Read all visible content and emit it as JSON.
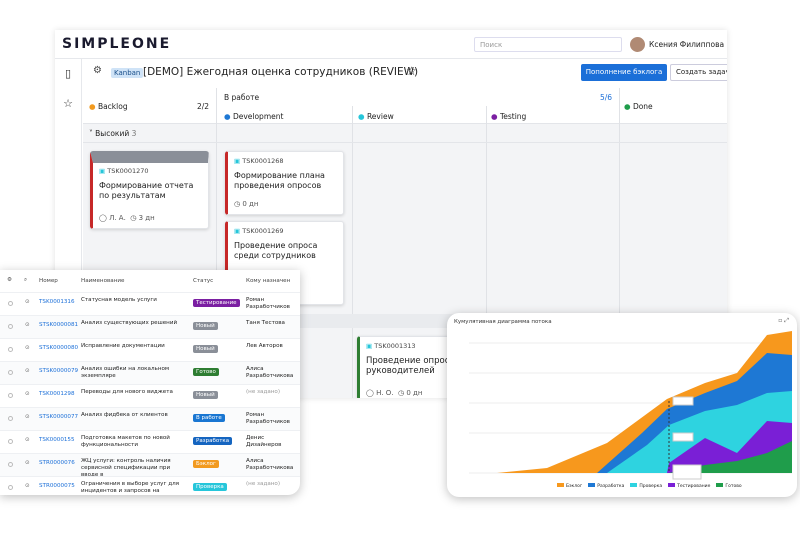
{
  "header": {
    "logo": "SIMPLEONE",
    "search": "Поиск",
    "user": "Ксения Филиппова"
  },
  "board": {
    "tag": "Kanban",
    "title": "[DEMO] Ежегодная оценка сотрудников (REVIEW)",
    "primary_button": "Пополнение бэклога",
    "secondary_button": "Создать задачу",
    "backlog": {
      "name": "Backlog",
      "count": "2/2"
    },
    "in_progress": {
      "name": "В работе",
      "count": "5/6",
      "sub": [
        "Development",
        "Review",
        "Testing"
      ]
    },
    "done": {
      "name": "Done"
    },
    "lane": {
      "name": "Высокий",
      "count": "3"
    },
    "cards": [
      {
        "number": "TSK0001270",
        "title": "Формирование отчета по результатам",
        "user": "Л. А.",
        "age": "3 дн"
      },
      {
        "number": "TSK0001268",
        "title": "Формирование плана проведения опросов",
        "age": "0 дн"
      },
      {
        "number": "TSK0001269",
        "title": "Проведение опроса среди сотрудников"
      },
      {
        "number": "TSK0001313",
        "title": "Проведение опроса для руководителей",
        "user": "Н. О.",
        "age": "0 дн"
      }
    ]
  },
  "table": {
    "headers": [
      "Номер",
      "Наименование",
      "Статус",
      "Кому назначен"
    ],
    "rows": [
      [
        "TSK0001316",
        "Статусная модель услуги",
        "Тестирование",
        "Роман Разработчиков"
      ],
      [
        "STSK0000081",
        "Анализ существующих решений",
        "Новый",
        "Таня Тестова"
      ],
      [
        "STSK0000080",
        "Исправление документации",
        "Новый",
        "Лев Авторов"
      ],
      [
        "STSK0000079",
        "Анализ ошибки на локальном экземпляре",
        "Готово",
        "Алиса Разработчикова"
      ],
      [
        "TSK0001298",
        "Переводы для нового виджета",
        "Новый",
        "(не задано)"
      ],
      [
        "STSK0000077",
        "Анализ фидбека от клиентов",
        "В работе",
        "Роман Разработчиков"
      ],
      [
        "TSK0000155",
        "Подготовка макетов по новой функциональности",
        "Разработка",
        "Денис Дизайнеров"
      ],
      [
        "STR0000076",
        "ЖЦ услуги: контроль наличия сервисной спецификации при вводе в",
        "Бэклог",
        "Алиса Разработчикова"
      ],
      [
        "STR0000075",
        "Ограничения в выборе услуг для инцидентов и запросов на",
        "Проверка",
        "(не задано)"
      ]
    ],
    "status_colors": {
      "Тестирование": "#7b1fa2",
      "Новый": "#8a8f98",
      "Готово": "#2e7d32",
      "В работе": "#1976d2",
      "Разработка": "#1565c0",
      "Бэклог": "#f29a1f",
      "Проверка": "#26c6da"
    }
  },
  "chart": {
    "title": "Кумулятивная диаграмма потока",
    "legend": [
      {
        "name": "Бэклог",
        "color": "#f7981d"
      },
      {
        "name": "Разработка",
        "color": "#1e78d4"
      },
      {
        "name": "Проверка",
        "color": "#2ed3e0"
      },
      {
        "name": "Тестирование",
        "color": "#7a1fd6"
      },
      {
        "name": "Готово",
        "color": "#1f9d4b"
      }
    ]
  }
}
